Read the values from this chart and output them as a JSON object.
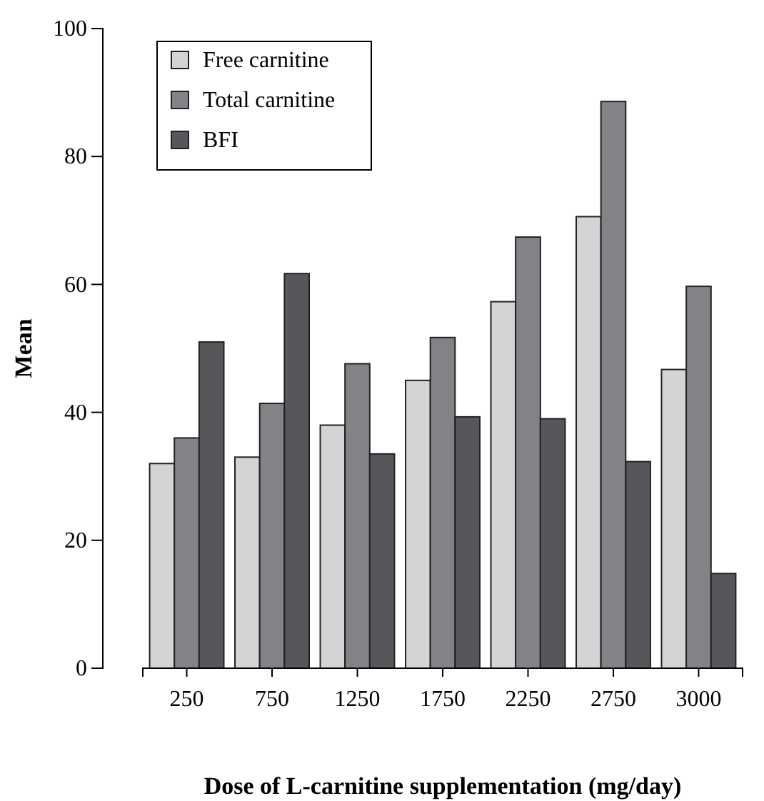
{
  "chart_data": {
    "type": "bar",
    "xlabel": "Dose of L-carnitine supplementation (mg/day)",
    "ylabel": "Mean",
    "categories": [
      "250",
      "750",
      "1250",
      "1750",
      "2250",
      "2750",
      "3000"
    ],
    "series": [
      {
        "name": "Free carnitine",
        "color": "#d3d4d6",
        "values": [
          32,
          33,
          38,
          45,
          57.3,
          70.6,
          46.7
        ]
      },
      {
        "name": "Total carnitine",
        "color": "#828387",
        "values": [
          36,
          41.4,
          47.6,
          51.7,
          67.4,
          88.6,
          59.7
        ]
      },
      {
        "name": "BFI",
        "color": "#56575a",
        "values": [
          51,
          61.7,
          33.5,
          39.3,
          39,
          32.3,
          14.8
        ]
      }
    ],
    "ylim": [
      0,
      100
    ],
    "yticks": [
      0,
      20,
      40,
      60,
      80,
      100
    ],
    "legend": "top left"
  }
}
